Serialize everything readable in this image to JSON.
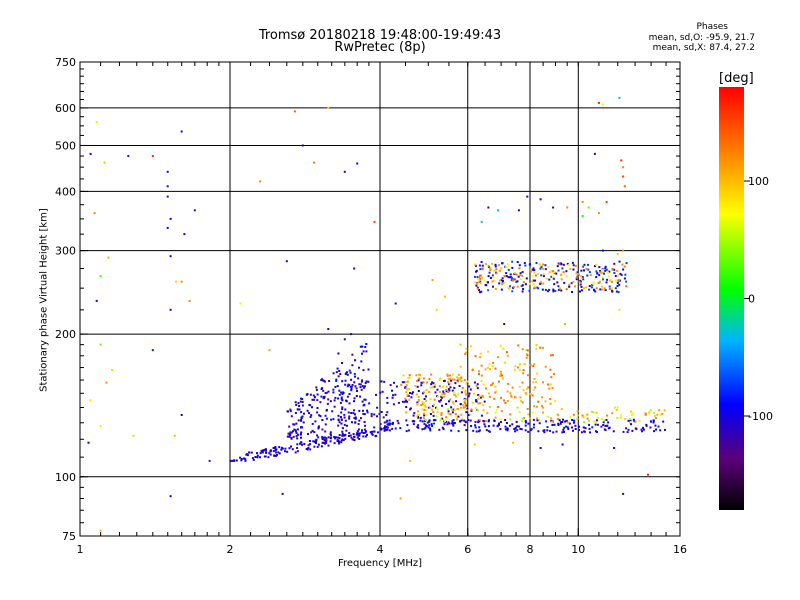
{
  "header": {
    "title_line1": "Tromsø 20180218 19:48:00-19:49:43",
    "title_line2": "RwPretec (8p)"
  },
  "phases": {
    "title": "Phases",
    "line1": "mean, sd,O: -95.9, 21.7",
    "line2": "mean, sd,X:  87.4, 27.2"
  },
  "colorbar": {
    "unit": "[deg]",
    "ticks": [
      {
        "value": 100,
        "label": "100"
      },
      {
        "value": 0,
        "label": "0"
      },
      {
        "value": -100,
        "label": "-100"
      }
    ],
    "range": [
      -180,
      180
    ]
  },
  "chart_data": {
    "type": "scatter",
    "title": "Tromsø 20180218 19:48:00-19:49:43",
    "subtitle": "RwPretec (8p)",
    "xlabel": "Frequency [MHz]",
    "ylabel": "Stationary phase Virtual Height [km]",
    "xscale": "log",
    "yscale": "log",
    "xlim": [
      1,
      16
    ],
    "ylim": [
      75,
      750
    ],
    "grid": true,
    "legend": "colorbar-right",
    "x_ticks": [
      {
        "value": 1,
        "label": "1"
      },
      {
        "value": 2,
        "label": "2"
      },
      {
        "value": 4,
        "label": "4"
      },
      {
        "value": 6,
        "label": "6"
      },
      {
        "value": 8,
        "label": "8"
      },
      {
        "value": 10,
        "label": "10"
      },
      {
        "value": 16,
        "label": "16"
      }
    ],
    "x_grid": [
      2,
      4,
      6,
      8,
      10
    ],
    "y_ticks": [
      {
        "value": 75,
        "label": "75"
      },
      {
        "value": 100,
        "label": "100"
      },
      {
        "value": 200,
        "label": "200"
      },
      {
        "value": 300,
        "label": "300"
      },
      {
        "value": 400,
        "label": "400"
      },
      {
        "value": 500,
        "label": "500"
      },
      {
        "value": 600,
        "label": "600"
      },
      {
        "value": 750,
        "label": "750"
      }
    ],
    "y_grid": [
      100,
      200,
      300,
      400,
      500,
      600
    ],
    "color_variable": "phase [deg]",
    "points": [
      [
        1.05,
        480,
        -100
      ],
      [
        1.08,
        560,
        60
      ],
      [
        1.12,
        460,
        40
      ],
      [
        1.07,
        360,
        120
      ],
      [
        1.1,
        265,
        20
      ],
      [
        1.08,
        235,
        -110
      ],
      [
        1.14,
        290,
        110
      ],
      [
        1.1,
        190,
        30
      ],
      [
        1.16,
        168,
        50
      ],
      [
        1.13,
        158,
        120
      ],
      [
        1.05,
        145,
        80
      ],
      [
        1.1,
        128,
        60
      ],
      [
        1.04,
        118,
        -90
      ],
      [
        1.1,
        77,
        100
      ],
      [
        1.25,
        475,
        -80
      ],
      [
        1.4,
        475,
        160
      ],
      [
        1.5,
        440,
        -100
      ],
      [
        1.5,
        410,
        -110
      ],
      [
        1.5,
        390,
        -110
      ],
      [
        1.52,
        350,
        -100
      ],
      [
        1.5,
        335,
        -100
      ],
      [
        1.62,
        325,
        -110
      ],
      [
        1.7,
        365,
        -120
      ],
      [
        1.52,
        292,
        -110
      ],
      [
        1.52,
        225,
        -110
      ],
      [
        1.56,
        258,
        90
      ],
      [
        1.66,
        235,
        120
      ],
      [
        1.4,
        185,
        -80
      ],
      [
        1.6,
        135,
        -110
      ],
      [
        1.28,
        122,
        50
      ],
      [
        1.55,
        122,
        100
      ],
      [
        1.52,
        91,
        -110
      ],
      [
        1.82,
        108,
        -80
      ],
      [
        1.6,
        535,
        -110
      ],
      [
        1.6,
        258,
        120
      ],
      [
        2.1,
        232,
        60
      ],
      [
        2.3,
        420,
        120
      ],
      [
        2.4,
        185,
        110
      ],
      [
        2.6,
        285,
        -100
      ],
      [
        2.7,
        590,
        140
      ],
      [
        2.8,
        500,
        -100
      ],
      [
        2.95,
        460,
        130
      ],
      [
        2.55,
        92,
        -110
      ],
      [
        3.15,
        600,
        90
      ],
      [
        3.6,
        458,
        -110
      ],
      [
        3.4,
        440,
        -110
      ],
      [
        3.55,
        275,
        -100
      ],
      [
        3.15,
        205,
        -110
      ],
      [
        3.4,
        195,
        -110
      ],
      [
        3.3,
        182,
        -95
      ],
      [
        3.5,
        200,
        -110
      ],
      [
        3.9,
        345,
        150
      ],
      [
        4.3,
        232,
        -100
      ],
      [
        4.4,
        90,
        110
      ],
      [
        4.6,
        108,
        100
      ],
      [
        5.1,
        260,
        110
      ],
      [
        5.4,
        240,
        100
      ],
      [
        5.2,
        225,
        50
      ],
      [
        5.8,
        190,
        40
      ],
      [
        6.4,
        345,
        -20
      ],
      [
        6.6,
        370,
        -110
      ],
      [
        6.9,
        365,
        -20
      ],
      [
        7.6,
        365,
        -110
      ],
      [
        7.9,
        390,
        -100
      ],
      [
        8.4,
        385,
        -100
      ],
      [
        8.9,
        370,
        -110
      ],
      [
        9.5,
        370,
        120
      ],
      [
        10.2,
        380,
        120
      ],
      [
        10.5,
        370,
        30
      ],
      [
        10.2,
        355,
        10
      ],
      [
        11.0,
        360,
        120
      ],
      [
        11.4,
        380,
        150
      ],
      [
        11.2,
        300,
        -90
      ],
      [
        12.0,
        295,
        90
      ],
      [
        10.8,
        480,
        -110
      ],
      [
        11.0,
        615,
        170
      ],
      [
        11.2,
        610,
        60
      ],
      [
        12.2,
        465,
        160
      ],
      [
        12.3,
        450,
        120
      ],
      [
        12.3,
        430,
        150
      ],
      [
        12.4,
        410,
        140
      ],
      [
        12.1,
        630,
        -30
      ],
      [
        12.3,
        300,
        120
      ],
      [
        7.1,
        210,
        -110
      ],
      [
        9.4,
        210,
        30
      ],
      [
        12.1,
        225,
        60
      ],
      [
        12.3,
        92,
        -110
      ],
      [
        13.8,
        101,
        160
      ],
      [
        11.8,
        115,
        -100
      ],
      [
        6.2,
        117,
        90
      ],
      [
        7.4,
        118,
        100
      ],
      [
        8.4,
        115,
        -100
      ],
      [
        9.3,
        117,
        -100
      ]
    ],
    "clusters": [
      {
        "x": [
          2.0,
          4.2
        ],
        "y": [
          108,
          130
        ],
        "phase": [
          -120,
          -90
        ],
        "count": 180,
        "slope": "rising"
      },
      {
        "x": [
          2.6,
          3.8
        ],
        "y": [
          120,
          195
        ],
        "phase": [
          -125,
          -80
        ],
        "count": 240,
        "slope": "fan"
      },
      {
        "x": [
          3.3,
          6.5
        ],
        "y": [
          128,
          160
        ],
        "phase": [
          -120,
          -90
        ],
        "count": 200,
        "slope": "flat"
      },
      {
        "x": [
          4.4,
          6.0
        ],
        "y": [
          135,
          165
        ],
        "phase": [
          80,
          130
        ],
        "count": 110,
        "slope": "flat"
      },
      {
        "x": [
          4.0,
          15.0
        ],
        "y": [
          124,
          132
        ],
        "phase": [
          -120,
          -80
        ],
        "count": 220,
        "slope": "flat"
      },
      {
        "x": [
          4.5,
          15.0
        ],
        "y": [
          130,
          140
        ],
        "phase": [
          40,
          130
        ],
        "count": 120,
        "slope": "flat"
      },
      {
        "x": [
          5.8,
          9.0
        ],
        "y": [
          140,
          190
        ],
        "phase": [
          80,
          140
        ],
        "count": 140,
        "slope": "flat"
      },
      {
        "x": [
          6.2,
          12.5
        ],
        "y": [
          245,
          285
        ],
        "phase": [
          -120,
          -60
        ],
        "count": 200,
        "slope": "flat"
      },
      {
        "x": [
          6.2,
          12.5
        ],
        "y": [
          248,
          282
        ],
        "phase": [
          60,
          140
        ],
        "count": 130,
        "slope": "flat"
      }
    ]
  }
}
